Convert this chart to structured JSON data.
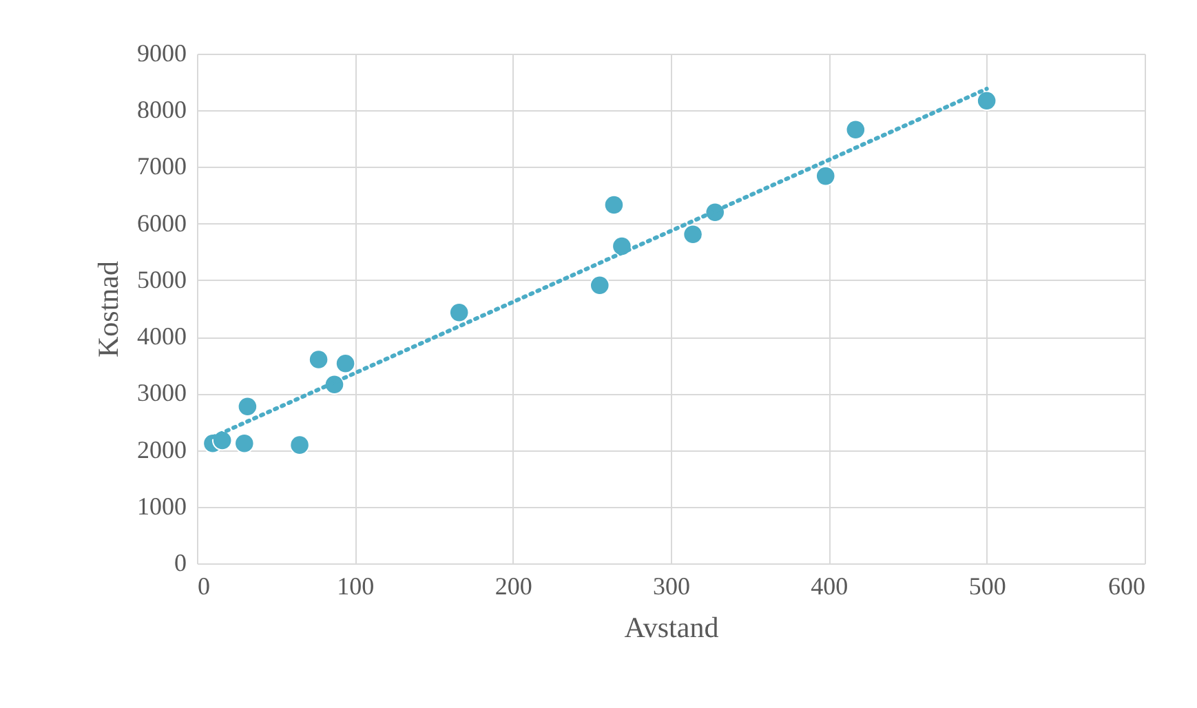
{
  "chart_data": {
    "type": "scatter",
    "xlabel": "Avstand",
    "ylabel": "Kostnad",
    "xlim": [
      0,
      600
    ],
    "xticks": [
      0,
      100,
      200,
      300,
      400,
      500,
      600
    ],
    "ylim": [
      0,
      9000
    ],
    "yticks": [
      0,
      1000,
      2000,
      3000,
      4000,
      5000,
      6000,
      7000,
      8000,
      9000
    ],
    "grid": true,
    "series": [
      {
        "color": "#4bacc6",
        "marker": "circle",
        "x": [
          10,
          16,
          32,
          30,
          65,
          77,
          87,
          94,
          166,
          255,
          264,
          269,
          314,
          328,
          398,
          417,
          500
        ],
        "values": [
          2120,
          2170,
          2770,
          2120,
          2090,
          3600,
          3160,
          3530,
          4430,
          4910,
          6330,
          5600,
          5810,
          6200,
          6840,
          7660,
          8170
        ]
      },
      {
        "type": "line",
        "color": "#4bacc6",
        "line_style": "dotted",
        "marker": "none",
        "x": [
          10,
          500
        ],
        "values": [
          2230,
          8380
        ]
      }
    ]
  }
}
